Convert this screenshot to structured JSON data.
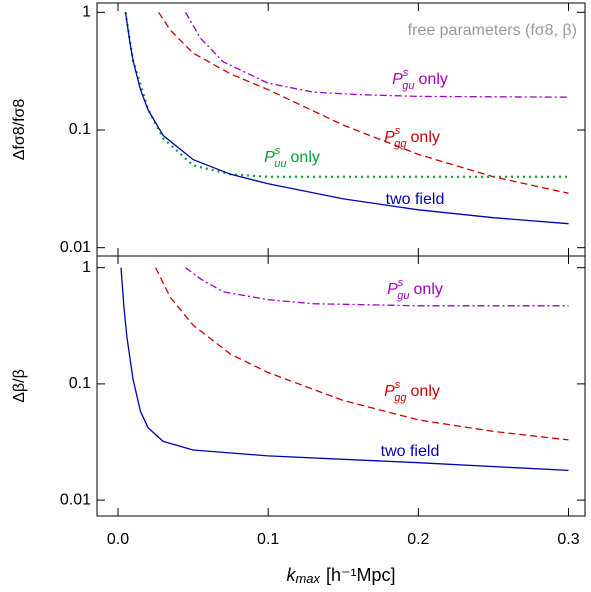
{
  "chart_data": [
    {
      "type": "line",
      "log_y": true,
      "ylabel": "Δfσ8/fσ8",
      "annotation": "free parameters  (fσ8, β)",
      "xlim": [
        -0.014,
        0.311
      ],
      "xticks": [
        0,
        0.1,
        0.2,
        0.3
      ],
      "ylim": [
        0.0085,
        1.2
      ],
      "yticks": [
        1,
        0.1,
        0.01
      ],
      "series": [
        {
          "name": "only",
          "symbol": "P",
          "sup": "s",
          "sub": "gu",
          "color": "#a000c0",
          "style": "dashdot",
          "x": [
            0.045,
            0.055,
            0.07,
            0.1,
            0.13,
            0.16,
            0.2,
            0.3
          ],
          "values": [
            1,
            0.6,
            0.38,
            0.25,
            0.21,
            0.2,
            0.193,
            0.19
          ]
        },
        {
          "name": "only",
          "symbol": "P",
          "sup": "s",
          "sub": "gg",
          "color": "#cc0000",
          "style": "dashed",
          "x": [
            0.027,
            0.035,
            0.05,
            0.075,
            0.1,
            0.15,
            0.2,
            0.25,
            0.3
          ],
          "values": [
            1,
            0.7,
            0.45,
            0.3,
            0.22,
            0.11,
            0.062,
            0.04,
            0.029
          ]
        },
        {
          "name": "only",
          "symbol": "P",
          "sup": "s",
          "sub": "uu",
          "color": "#00a030",
          "style": "dotted",
          "x": [
            0.005,
            0.01,
            0.02,
            0.03,
            0.05,
            0.075,
            0.1,
            0.2,
            0.3
          ],
          "values": [
            1,
            0.39,
            0.15,
            0.085,
            0.05,
            0.042,
            0.04,
            0.04,
            0.04
          ]
        },
        {
          "name": "two field",
          "color": "#0000b0",
          "style": "solid",
          "x": [
            0.005,
            0.008,
            0.01,
            0.015,
            0.02,
            0.03,
            0.05,
            0.075,
            0.1,
            0.15,
            0.2,
            0.25,
            0.3
          ],
          "values": [
            1,
            0.55,
            0.39,
            0.22,
            0.148,
            0.09,
            0.056,
            0.042,
            0.035,
            0.026,
            0.021,
            0.018,
            0.016
          ]
        }
      ]
    },
    {
      "type": "line",
      "log_y": true,
      "ylabel": "Δβ/β",
      "xlabel": "k",
      "xlabel_sub": "max",
      "xlabel_rest": "[h⁻¹Mpc]",
      "xlim": [
        -0.014,
        0.311
      ],
      "xticks": [
        {
          "value": 0,
          "label": "0.0"
        },
        0.1,
        0.2,
        0.3
      ],
      "ylim": [
        0.0073,
        1.26
      ],
      "yticks": [
        1,
        0.1,
        0.01
      ],
      "series": [
        {
          "name": "only",
          "symbol": "P",
          "sup": "s",
          "sub": "gu",
          "color": "#a000c0",
          "style": "dashdot",
          "x": [
            0.045,
            0.055,
            0.07,
            0.1,
            0.13,
            0.2,
            0.3
          ],
          "values": [
            1,
            0.8,
            0.62,
            0.53,
            0.49,
            0.47,
            0.47
          ]
        },
        {
          "name": "only",
          "symbol": "P",
          "sup": "s",
          "sub": "gg",
          "color": "#cc0000",
          "style": "dashed",
          "x": [
            0.025,
            0.035,
            0.05,
            0.075,
            0.1,
            0.15,
            0.2,
            0.25,
            0.3
          ],
          "values": [
            1,
            0.55,
            0.32,
            0.18,
            0.125,
            0.072,
            0.049,
            0.039,
            0.033
          ]
        },
        {
          "name": "two field",
          "color": "#0000b0",
          "style": "solid",
          "x": [
            0.002,
            0.004,
            0.006,
            0.01,
            0.015,
            0.02,
            0.03,
            0.05,
            0.1,
            0.2,
            0.3
          ],
          "values": [
            1,
            0.45,
            0.25,
            0.11,
            0.058,
            0.042,
            0.032,
            0.027,
            0.024,
            0.021,
            0.018
          ]
        }
      ]
    }
  ]
}
